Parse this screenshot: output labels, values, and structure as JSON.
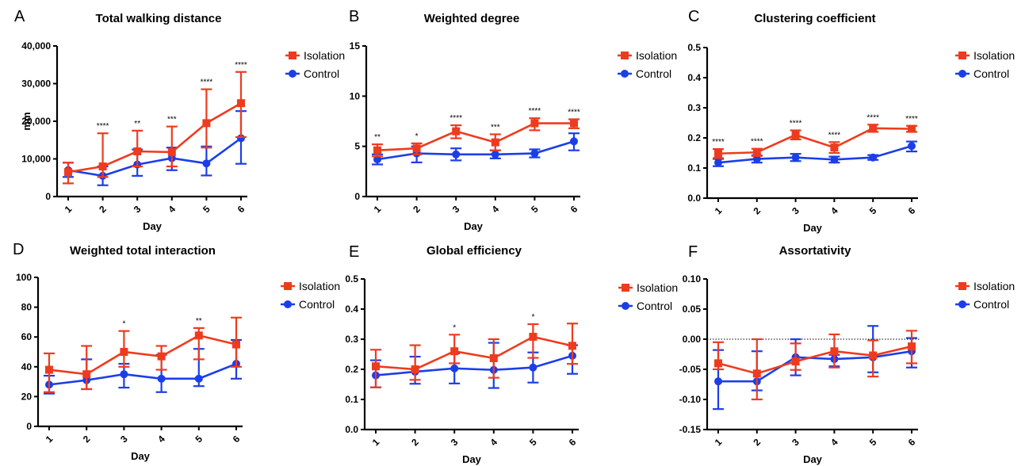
{
  "colors": {
    "isolation": "#ee3b1e",
    "control": "#1c3ee8",
    "axis": "#000000"
  },
  "chart_data": [
    {
      "id": "A",
      "letter": "A",
      "type": "line",
      "title": "Total walking distance",
      "xlabel": "Day",
      "ylabel": "mm",
      "categories": [
        "1",
        "2",
        "3",
        "4",
        "5",
        "6"
      ],
      "ylim": [
        0,
        40000
      ],
      "yticks": [
        0,
        10000,
        20000,
        30000,
        40000
      ],
      "ytick_labels": [
        "0",
        "10,000",
        "20,000",
        "30,000",
        "40,000"
      ],
      "zero_line": false,
      "series": [
        {
          "name": "Isolation",
          "values": [
            6500,
            8000,
            12000,
            11800,
            19500,
            24800
          ],
          "err_lo": [
            3000,
            2800,
            4000,
            3800,
            6500,
            9000
          ],
          "err_hi": [
            2500,
            8800,
            5500,
            6800,
            9000,
            8300
          ]
        },
        {
          "name": "Control",
          "values": [
            7000,
            5500,
            8500,
            10200,
            8800,
            15500
          ],
          "err_lo": [
            1800,
            2500,
            3000,
            3200,
            3200,
            6800
          ],
          "err_hi": [
            2000,
            2500,
            4000,
            2800,
            4500,
            7200
          ]
        }
      ],
      "significance": [
        "",
        "****",
        "**",
        "***",
        "****",
        "****"
      ]
    },
    {
      "id": "B",
      "letter": "B",
      "type": "line",
      "title": "Weighted degree",
      "xlabel": "Day",
      "ylabel": "",
      "categories": [
        "1",
        "2",
        "3",
        "4",
        "5",
        "6"
      ],
      "ylim": [
        0,
        15
      ],
      "yticks": [
        0,
        5,
        10,
        15
      ],
      "ytick_labels": [
        "0",
        "5",
        "10",
        "15"
      ],
      "zero_line": false,
      "series": [
        {
          "name": "Isolation",
          "values": [
            4.6,
            4.8,
            6.5,
            5.4,
            7.3,
            7.3
          ],
          "err_lo": [
            0.6,
            0.6,
            0.7,
            0.8,
            0.7,
            0.5
          ],
          "err_hi": [
            0.6,
            0.5,
            0.6,
            0.8,
            0.5,
            0.4
          ]
        },
        {
          "name": "Control",
          "values": [
            3.7,
            4.3,
            4.2,
            4.2,
            4.3,
            5.5
          ],
          "err_lo": [
            0.5,
            0.9,
            0.6,
            0.4,
            0.4,
            0.9
          ],
          "err_hi": [
            0.5,
            0.7,
            0.6,
            0.4,
            0.4,
            0.8
          ]
        }
      ],
      "significance": [
        "**",
        "*",
        "****",
        "***",
        "****",
        "****"
      ]
    },
    {
      "id": "C",
      "letter": "C",
      "type": "line",
      "title": "Clustering coefficient",
      "xlabel": "Day",
      "ylabel": "",
      "categories": [
        "1",
        "2",
        "3",
        "4",
        "5",
        "6"
      ],
      "ylim": [
        0,
        0.5
      ],
      "yticks": [
        0,
        0.1,
        0.2,
        0.3,
        0.4,
        0.5
      ],
      "ytick_labels": [
        "0.0",
        "0.1",
        "0.2",
        "0.3",
        "0.4",
        "0.5"
      ],
      "zero_line": false,
      "series": [
        {
          "name": "Isolation",
          "values": [
            0.148,
            0.152,
            0.21,
            0.168,
            0.232,
            0.23
          ],
          "err_lo": [
            0.015,
            0.012,
            0.015,
            0.018,
            0.012,
            0.01
          ],
          "err_hi": [
            0.015,
            0.012,
            0.015,
            0.018,
            0.012,
            0.01
          ]
        },
        {
          "name": "Control",
          "values": [
            0.118,
            0.13,
            0.135,
            0.128,
            0.135,
            0.173
          ],
          "err_lo": [
            0.012,
            0.012,
            0.012,
            0.01,
            0.008,
            0.018
          ],
          "err_hi": [
            0.012,
            0.012,
            0.012,
            0.01,
            0.008,
            0.015
          ]
        }
      ],
      "significance": [
        "****",
        "****",
        "****",
        "****",
        "****",
        "****"
      ]
    },
    {
      "id": "D",
      "letter": "D",
      "type": "line",
      "title": "Weighted total interaction",
      "xlabel": "Day",
      "ylabel": "",
      "categories": [
        "1",
        "2",
        "3",
        "4",
        "5",
        "6"
      ],
      "ylim": [
        0,
        100
      ],
      "yticks": [
        0,
        20,
        40,
        60,
        80,
        100
      ],
      "ytick_labels": [
        "0",
        "20",
        "40",
        "60",
        "80",
        "100"
      ],
      "zero_line": false,
      "series": [
        {
          "name": "Isolation",
          "values": [
            38,
            35,
            50,
            47,
            61,
            55
          ],
          "err_lo": [
            15,
            10,
            10,
            9,
            16,
            15
          ],
          "err_hi": [
            11,
            19,
            14,
            7,
            5,
            18
          ]
        },
        {
          "name": "Control",
          "values": [
            28,
            31,
            35,
            32,
            32,
            42
          ],
          "err_lo": [
            6,
            6,
            9,
            9,
            5,
            10
          ],
          "err_hi": [
            6,
            14,
            7,
            16,
            20,
            16
          ]
        }
      ],
      "significance": [
        "",
        "",
        "*",
        "",
        "**",
        ""
      ]
    },
    {
      "id": "E",
      "letter": "E",
      "type": "line",
      "title": "Global efficiency",
      "xlabel": "Day",
      "ylabel": "",
      "categories": [
        "1",
        "2",
        "3",
        "4",
        "5",
        "6"
      ],
      "ylim": [
        0,
        0.5
      ],
      "yticks": [
        0,
        0.1,
        0.2,
        0.3,
        0.4,
        0.5
      ],
      "ytick_labels": [
        "0.0",
        "0.1",
        "0.2",
        "0.3",
        "0.4",
        "0.5"
      ],
      "zero_line": false,
      "series": [
        {
          "name": "Isolation",
          "values": [
            0.21,
            0.2,
            0.26,
            0.237,
            0.308,
            0.278
          ],
          "err_lo": [
            0.07,
            0.035,
            0.04,
            0.065,
            0.07,
            0.06
          ],
          "err_hi": [
            0.055,
            0.08,
            0.055,
            0.063,
            0.042,
            0.074
          ]
        },
        {
          "name": "Control",
          "values": [
            0.18,
            0.192,
            0.203,
            0.198,
            0.206,
            0.245
          ],
          "err_lo": [
            0.04,
            0.04,
            0.05,
            0.06,
            0.05,
            0.06
          ],
          "err_hi": [
            0.05,
            0.05,
            0.05,
            0.09,
            0.05,
            0.035
          ]
        }
      ],
      "significance": [
        "",
        "",
        "*",
        "",
        "*",
        ""
      ]
    },
    {
      "id": "F",
      "letter": "F",
      "type": "line",
      "title": "Assortativity",
      "xlabel": "Day",
      "ylabel": "",
      "categories": [
        "1",
        "2",
        "3",
        "4",
        "5",
        "6"
      ],
      "ylim": [
        -0.15,
        0.1
      ],
      "yticks": [
        -0.15,
        -0.1,
        -0.05,
        0,
        0.05,
        0.1
      ],
      "ytick_labels": [
        "-0.15",
        "-0.10",
        "-0.05",
        "0.00",
        "0.05",
        "0.10"
      ],
      "zero_line": true,
      "series": [
        {
          "name": "Isolation",
          "values": [
            -0.04,
            -0.057,
            -0.037,
            -0.02,
            -0.027,
            -0.012
          ],
          "err_lo": [
            0.01,
            0.043,
            0.014,
            0.027,
            0.035,
            0.028
          ],
          "err_hi": [
            0.035,
            0.057,
            0.03,
            0.028,
            0.025,
            0.026
          ]
        },
        {
          "name": "Control",
          "values": [
            -0.07,
            -0.07,
            -0.03,
            -0.033,
            -0.03,
            -0.02
          ],
          "err_lo": [
            0.046,
            0.015,
            0.03,
            0.012,
            0.025,
            0.027
          ],
          "err_hi": [
            0.052,
            0.05,
            0.03,
            0.007,
            0.052,
            0.022
          ]
        }
      ],
      "significance": [
        "",
        "",
        "",
        "",
        "",
        ""
      ]
    }
  ]
}
